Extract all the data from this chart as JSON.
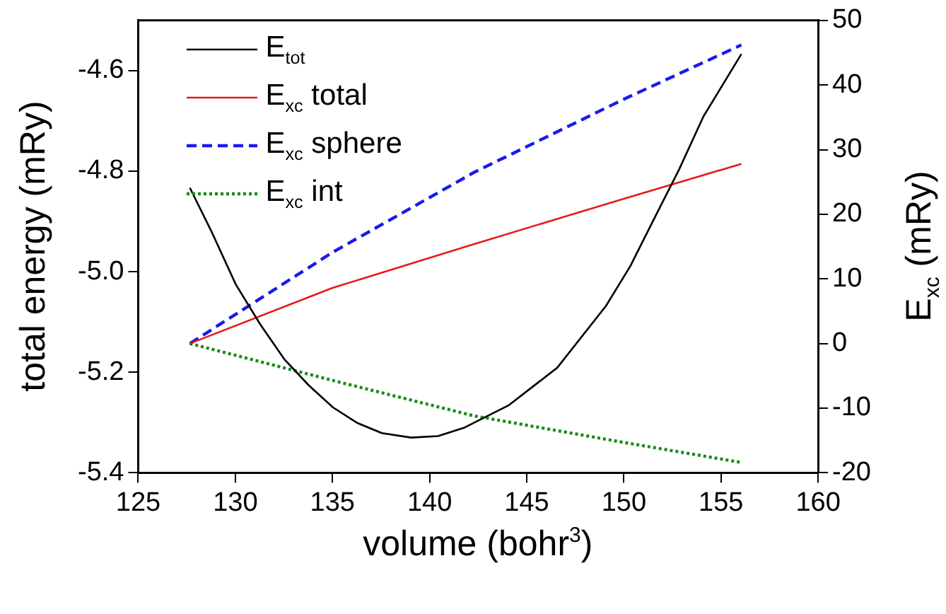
{
  "chart_data": {
    "type": "line",
    "xlabel": "volume (bohr$^{3}$)",
    "ylabel": "total energy (mRy)",
    "y2label": "E$_{xc}$ (mRy)",
    "xlim": [
      125,
      160
    ],
    "xticks": [
      125,
      130,
      135,
      140,
      145,
      150,
      155,
      160
    ],
    "ylim": [
      -5.4,
      -4.5
    ],
    "yticks": [
      -5.4,
      -5.2,
      {
        "value": -5.0,
        "label": "-5.0"
      },
      -4.8,
      -4.6
    ],
    "y2lim": [
      -20,
      50
    ],
    "y2ticks": [
      -20,
      -10,
      0,
      10,
      20,
      30,
      40,
      50
    ],
    "grid": false,
    "legend": "top left",
    "marker": "none",
    "series": [
      {
        "name": "E$_{tot}$",
        "color": "#000000",
        "line_style": "solid",
        "x": [
          127.66,
          128.76,
          130.02,
          131.27,
          132.52,
          133.78,
          135.03,
          136.29,
          137.54,
          139.05,
          140.43,
          141.8,
          144.06,
          146.57,
          149.08,
          150.33,
          151.58,
          152.84,
          154.1,
          156.05
        ],
        "values": [
          -4.833,
          -4.919,
          -5.025,
          -5.104,
          -5.174,
          -5.226,
          -5.27,
          -5.301,
          -5.321,
          -5.33,
          -5.327,
          -5.31,
          -5.266,
          -5.191,
          -5.068,
          -4.989,
          -4.893,
          -4.797,
          -4.691,
          -4.567
        ]
      },
      {
        "name": "E$_{xc}$ total",
        "color": "#e8191b",
        "line_style": "solid",
        "axis": "y2",
        "x": [
          127.66,
          135,
          142.3,
          150,
          156.05
        ],
        "values": [
          0,
          8.6,
          15.4,
          22.4,
          27.8
        ]
      },
      {
        "name": "E$_{xc}$ sphere",
        "color": "#1a1aeb",
        "line_style": "dashed",
        "axis": "y2",
        "x": [
          127.66,
          135,
          142.3,
          150,
          156.05
        ],
        "values": [
          0,
          14.1,
          26.5,
          37.8,
          46.2
        ]
      },
      {
        "name": "E$_{xc}$ int",
        "color": "#1a8a1a",
        "line_style": "dotted",
        "axis": "y2",
        "x": [
          127.66,
          135,
          142.3,
          150,
          156.05
        ],
        "values": [
          0,
          -5.7,
          -11.2,
          -15.3,
          -18.4
        ]
      }
    ]
  }
}
